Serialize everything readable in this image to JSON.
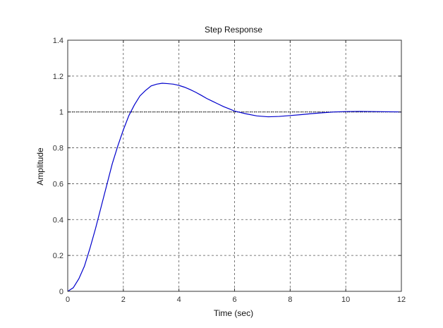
{
  "chart_data": {
    "type": "line",
    "title": "Step Response",
    "xlabel": "Time (sec)",
    "ylabel": "Amplitude",
    "xlim": [
      0,
      12
    ],
    "ylim": [
      0,
      1.4
    ],
    "xticks": [
      0,
      2,
      4,
      6,
      8,
      10,
      12
    ],
    "yticks": [
      0,
      0.2,
      0.4,
      0.6,
      0.8,
      1,
      1.2,
      1.4
    ],
    "xtick_labels": [
      "0",
      "2",
      "4",
      "6",
      "8",
      "10",
      "12"
    ],
    "ytick_labels": [
      "0",
      "0.2",
      "0.4",
      "0.6",
      "0.8",
      "1",
      "1.2",
      "1.4"
    ],
    "grid": true,
    "reference_line": {
      "y": 1,
      "style": "dotted",
      "color": "#000000"
    },
    "series": [
      {
        "color": "#0000cc",
        "x": [
          0,
          0.2,
          0.4,
          0.6,
          0.8,
          1.0,
          1.2,
          1.4,
          1.6,
          1.8,
          2.0,
          2.2,
          2.4,
          2.6,
          2.8,
          3.0,
          3.2,
          3.4,
          3.6,
          3.8,
          4.0,
          4.2,
          4.4,
          4.6,
          4.8,
          5.0,
          5.2,
          5.4,
          5.6,
          5.8,
          6.0,
          6.4,
          6.8,
          7.2,
          7.6,
          8.0,
          8.4,
          8.8,
          9.2,
          9.6,
          10.0,
          10.5,
          11.0,
          11.5,
          12.0
        ],
        "y": [
          0,
          0.02,
          0.07,
          0.14,
          0.24,
          0.35,
          0.47,
          0.59,
          0.71,
          0.81,
          0.9,
          0.98,
          1.04,
          1.09,
          1.12,
          1.145,
          1.155,
          1.16,
          1.158,
          1.155,
          1.148,
          1.138,
          1.125,
          1.11,
          1.093,
          1.075,
          1.06,
          1.045,
          1.03,
          1.018,
          1.005,
          0.99,
          0.978,
          0.973,
          0.975,
          0.98,
          0.985,
          0.991,
          0.996,
          1.0,
          1.002,
          1.003,
          1.002,
          1.001,
          1.0
        ]
      }
    ]
  }
}
